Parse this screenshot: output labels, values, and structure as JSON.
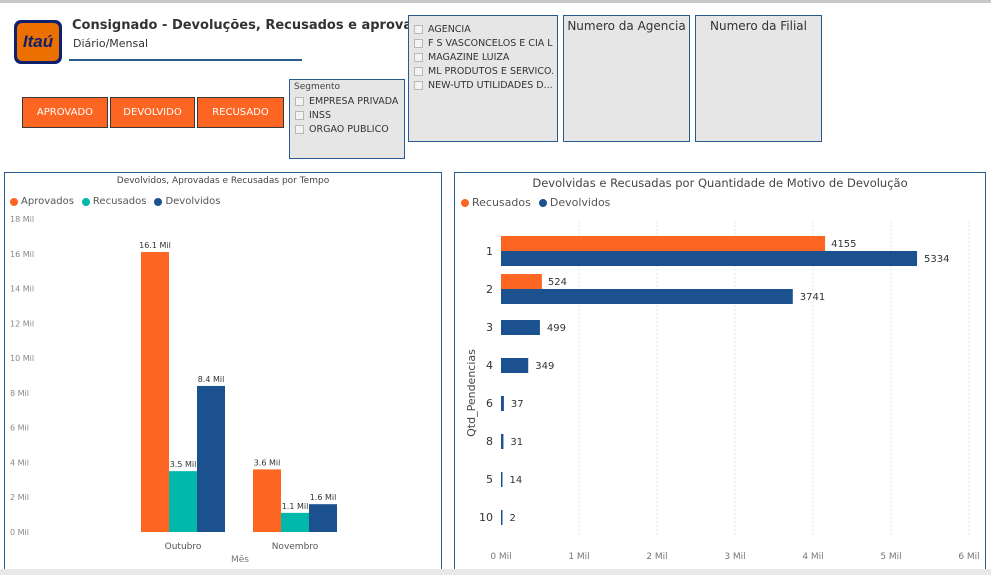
{
  "header": {
    "logo_text": "Itaú",
    "title": "Consignado - Devoluções, Recusados e aprovados",
    "subtitle": "Diário/Mensal"
  },
  "colors": {
    "accent": "#fd6522",
    "aprovados": "#fd6522",
    "recusados": "#01b8aa",
    "devolvidos": "#1c5190",
    "frame": "#2a5b8e"
  },
  "buttons": {
    "aprovado": "APROVADO",
    "devolvido": "DEVOLVIDO",
    "recusado": "RECUSADO"
  },
  "segmento": {
    "title": "Segmento",
    "options": [
      "EMPRESA PRIVADA",
      "INSS",
      "ORGAO PUBLICO"
    ]
  },
  "agencia_list": {
    "options": [
      "AGENCIA",
      "F S VASCONCELOS E CIA L...",
      "MAGAZINE LUIZA",
      "ML PRODUTOS E SERVICO...",
      "NEW-UTD UTILIDADES D..."
    ]
  },
  "numero_agencia": {
    "title": "Numero da Agencia"
  },
  "numero_filial": {
    "title": "Numero da Filial"
  },
  "chart_data": [
    {
      "type": "bar",
      "title": "Devolvidos, Aprovadas e Recusadas por Tempo",
      "xlabel": "Mês",
      "ylabel": "",
      "categories": [
        "Outubro",
        "Novembro"
      ],
      "series": [
        {
          "name": "Aprovados",
          "values": [
            16100,
            3600
          ],
          "labels": [
            "16.1 Mil",
            "3.6 Mil"
          ],
          "color": "#fd6522"
        },
        {
          "name": "Recusados",
          "values": [
            3500,
            1100
          ],
          "labels": [
            "3.5 Mil",
            "1.1 Mil"
          ],
          "color": "#01b8aa"
        },
        {
          "name": "Devolvidos",
          "values": [
            8400,
            1600
          ],
          "labels": [
            "8.4 Mil",
            "1.6 Mil"
          ],
          "color": "#1c5190"
        }
      ],
      "ylim": [
        0,
        18000
      ],
      "yticks": [
        0,
        2000,
        4000,
        6000,
        8000,
        10000,
        12000,
        14000,
        16000,
        18000
      ],
      "ytick_labels": [
        "0 Mil",
        "2 Mil",
        "4 Mil",
        "6 Mil",
        "8 Mil",
        "10 Mil",
        "12 Mil",
        "14 Mil",
        "16 Mil",
        "18 Mil"
      ],
      "legend": "top-left",
      "grid": false
    },
    {
      "type": "bar",
      "orientation": "horizontal",
      "title": "Devolvidas e Recusadas por Quantidade de Motivo de Devolução",
      "ylabel": "Qtd_Pendencias",
      "xlabel": "",
      "categories": [
        "1",
        "2",
        "3",
        "4",
        "6",
        "8",
        "5",
        "10"
      ],
      "series": [
        {
          "name": "Recusados",
          "values": [
            4155,
            524,
            null,
            null,
            null,
            null,
            null,
            null
          ],
          "color": "#fd6522"
        },
        {
          "name": "Devolvidos",
          "values": [
            5334,
            3741,
            499,
            349,
            37,
            31,
            14,
            2
          ],
          "color": "#1c5190"
        }
      ],
      "xlim": [
        0,
        6000
      ],
      "xticks": [
        0,
        1000,
        2000,
        3000,
        4000,
        5000,
        6000
      ],
      "xtick_labels": [
        "0 Mil",
        "1 Mil",
        "2 Mil",
        "3 Mil",
        "4 Mil",
        "5 Mil",
        "6 Mil"
      ],
      "legend": "top-left",
      "grid": true
    }
  ]
}
